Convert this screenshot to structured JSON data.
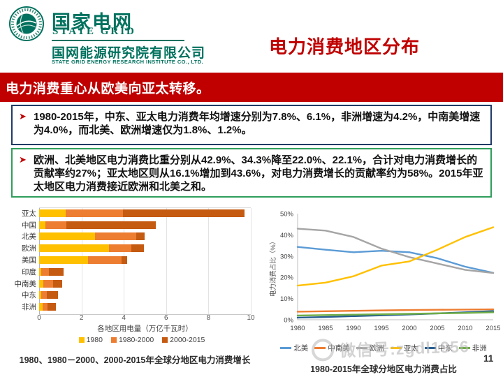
{
  "header": {
    "logo": {
      "name_cn": "国家电网",
      "name_en": "STATE GRID",
      "org_cn": "国网能源研究院有限公司",
      "org_en": "STATE GRID ENERGY RESEARCH INSTITUTE CO., LTD."
    },
    "title": "电力消费地区分布"
  },
  "banner": {
    "text": "电力消费重心从欧美向亚太转移。"
  },
  "bullets": [
    {
      "marker": "➤",
      "text": "1980-2015年，中东、亚太电力消费年均增速分别为7.8%、6.1%，非洲增速为4.2%，中南美增速为4.0%，而北美、欧洲增速仅为1.8%、1.2%。"
    },
    {
      "marker": "➤",
      "text": "欧洲、北美地区电力消费比重分别从42.9%、34.3%降至22.0%、22.1%，合计对电力消费增长的贡献率约27%；亚太地区则从16.1%增加到43.6%，对电力消费增长的贡献率约为58%。2015年亚太地区电力消费接近欧洲和北美之和。"
    }
  ],
  "colors": {
    "accent_red": "#C00000",
    "brand_green": "#00715E",
    "box1_border": "#1F3B66",
    "box2_border": "#2E9E5B"
  },
  "watermark": {
    "text": "微信号:zgdl1956"
  },
  "page_number": "11",
  "chart_data": [
    {
      "type": "bar",
      "orientation": "horizontal",
      "stacked": true,
      "categories": [
        "亚太",
        "中国",
        "北美",
        "欧洲",
        "美国",
        "印度",
        "中南美",
        "中东",
        "非洲"
      ],
      "series": [
        {
          "name": "1980",
          "color": "#FFC000",
          "values": [
            1.25,
            0.3,
            2.65,
            3.3,
            2.3,
            0.1,
            0.2,
            0.1,
            0.15
          ]
        },
        {
          "name": "1980-2000",
          "color": "#ED7D31",
          "values": [
            2.7,
            1.0,
            1.95,
            1.05,
            1.6,
            0.35,
            0.45,
            0.25,
            0.25
          ]
        },
        {
          "name": "2000-2015",
          "color": "#C55A11",
          "values": [
            5.75,
            4.2,
            0.4,
            0.6,
            0.25,
            0.7,
            0.45,
            0.55,
            0.4
          ]
        }
      ],
      "xlabel": "各地区用电量（万亿千瓦时）",
      "xlim": [
        0,
        10
      ],
      "xticks": [
        0,
        2,
        4,
        6,
        8,
        10
      ],
      "grid": "vertical",
      "legend_position": "bottom",
      "caption": "1980、1980－2000、2000-2015年全球分地区电力消费增长"
    },
    {
      "type": "line",
      "x": [
        1980,
        1985,
        1990,
        1995,
        2000,
        2005,
        2010,
        2015
      ],
      "series": [
        {
          "name": "北美",
          "color": "#5B9BD5",
          "values": [
            34.3,
            33.0,
            31.8,
            32.5,
            31.8,
            29.0,
            25.0,
            22.1
          ]
        },
        {
          "name": "中南美",
          "color": "#ED7D31",
          "values": [
            3.8,
            4.0,
            4.2,
            4.4,
            4.6,
            4.7,
            4.8,
            4.9
          ]
        },
        {
          "name": "欧洲",
          "color": "#A5A5A5",
          "values": [
            42.9,
            42.0,
            39.0,
            33.5,
            29.5,
            26.5,
            23.5,
            22.0
          ]
        },
        {
          "name": "亚太",
          "color": "#FFC000",
          "values": [
            16.1,
            17.5,
            20.5,
            25.5,
            27.5,
            33.0,
            39.0,
            43.6
          ]
        },
        {
          "name": "中东",
          "color": "#255E91",
          "values": [
            1.0,
            1.3,
            1.7,
            2.1,
            2.5,
            3.0,
            3.5,
            4.1
          ]
        },
        {
          "name": "非洲",
          "color": "#70AD47",
          "values": [
            2.0,
            2.2,
            2.4,
            2.6,
            2.8,
            3.0,
            3.2,
            3.5
          ]
        }
      ],
      "ylabel": "电力消费占比（%）",
      "ylim": [
        0,
        50
      ],
      "yticks": [
        "0%",
        "10%",
        "20%",
        "30%",
        "40%",
        "50%"
      ],
      "grid": "off",
      "legend_position": "bottom",
      "caption": "1980-2015年全球分地区电力消费占比"
    }
  ]
}
